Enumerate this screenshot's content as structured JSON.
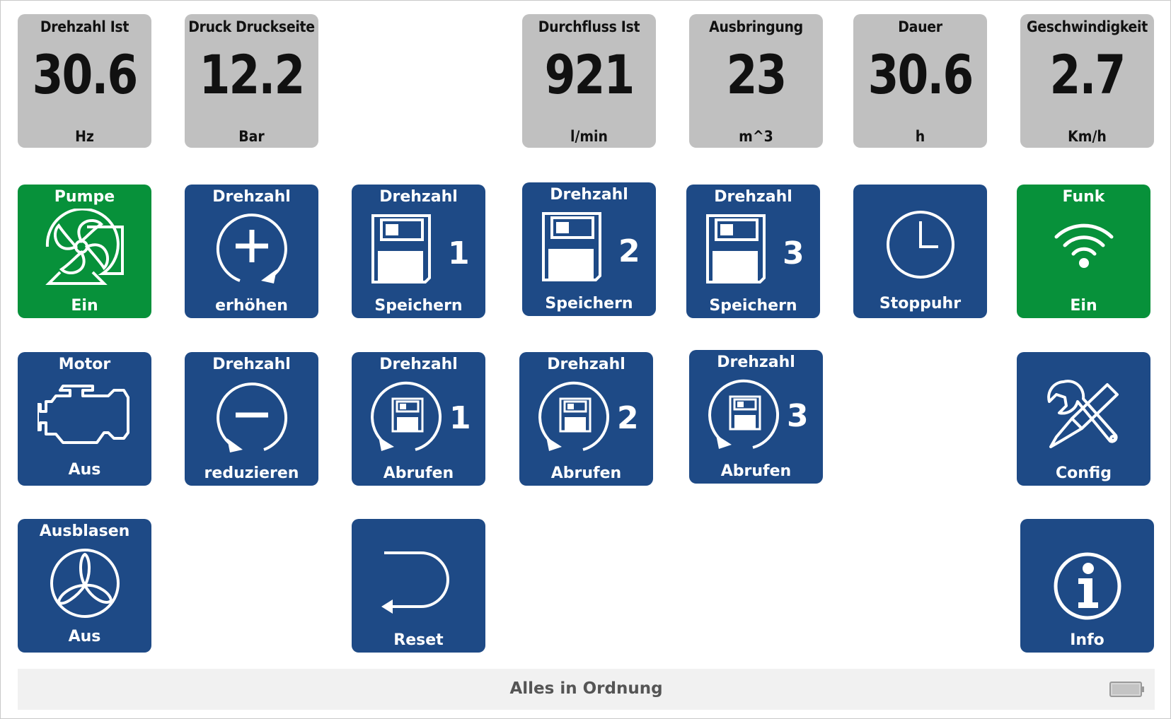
{
  "gauges": [
    {
      "title": "Drehzahl Ist",
      "value": "30.6",
      "unit": "Hz"
    },
    {
      "title": "Druck Druckseite",
      "value": "12.2",
      "unit": "Bar"
    },
    {
      "title": "Durchfluss Ist",
      "value": "921",
      "unit": "l/min"
    },
    {
      "title": "Ausbringung",
      "value": "23",
      "unit": "m^3"
    },
    {
      "title": "Dauer",
      "value": "30.6",
      "unit": "h"
    },
    {
      "title": "Geschwindigkeit",
      "value": "2.7",
      "unit": "Km/h"
    }
  ],
  "buttons": {
    "pumpe": {
      "top": "Pumpe",
      "bottom": "Ein",
      "icon": "pump-icon",
      "color": "#07913a"
    },
    "drehzahl_erhoehen": {
      "top": "Drehzahl",
      "bottom": "erhöhen",
      "icon": "plus-circle-icon"
    },
    "speichern_1": {
      "top": "Drehzahl",
      "bottom": "Speichern",
      "number": "1",
      "icon": "floppy-disk-icon"
    },
    "speichern_2": {
      "top": "Drehzahl",
      "bottom": "Speichern",
      "number": "2",
      "icon": "floppy-disk-icon"
    },
    "speichern_3": {
      "top": "Drehzahl",
      "bottom": "Speichern",
      "number": "3",
      "icon": "floppy-disk-icon"
    },
    "stoppuhr": {
      "bottom": "Stoppuhr",
      "icon": "clock-icon"
    },
    "funk": {
      "top": "Funk",
      "bottom": "Ein",
      "icon": "wifi-icon",
      "color": "#07913a"
    },
    "motor": {
      "top": "Motor",
      "bottom": "Aus",
      "icon": "engine-icon"
    },
    "drehzahl_reduzieren": {
      "top": "Drehzahl",
      "bottom": "reduzieren",
      "icon": "minus-circle-icon"
    },
    "abrufen_1": {
      "top": "Drehzahl",
      "bottom": "Abrufen",
      "number": "1",
      "icon": "recall-disk-icon"
    },
    "abrufen_2": {
      "top": "Drehzahl",
      "bottom": "Abrufen",
      "number": "2",
      "icon": "recall-disk-icon"
    },
    "abrufen_3": {
      "top": "Drehzahl",
      "bottom": "Abrufen",
      "number": "3",
      "icon": "recall-disk-icon"
    },
    "config": {
      "bottom": "Config",
      "icon": "tools-icon"
    },
    "ausblasen": {
      "top": "Ausblasen",
      "bottom": "Aus",
      "icon": "fan-icon"
    },
    "reset": {
      "bottom": "Reset",
      "icon": "return-arrow-icon"
    },
    "info": {
      "bottom": "Info",
      "icon": "info-icon"
    }
  },
  "status": {
    "text": "Alles in Ordnung",
    "battery_icon": "battery-icon"
  },
  "colors": {
    "blue": "#1e4a86",
    "green": "#07913a",
    "gauge_bg": "#c0c0c0",
    "status_bg": "#f1f1f1"
  }
}
